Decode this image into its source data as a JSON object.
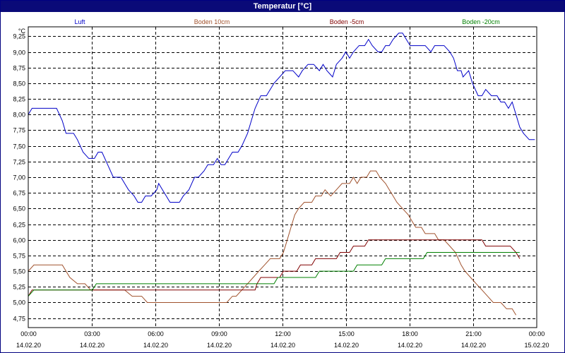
{
  "window": {
    "title": "Temperatur [°C]"
  },
  "chart_data": {
    "type": "line",
    "title": "Temperatur [°C]",
    "ylabel": "°C",
    "xlabel": "",
    "ylim": [
      4.6,
      9.4
    ],
    "y_ticks": [
      "9,25",
      "9,00",
      "8,75",
      "8,50",
      "8,25",
      "8,00",
      "7,75",
      "7,50",
      "7,25",
      "7,00",
      "6,75",
      "6,50",
      "6,25",
      "6,00",
      "5,75",
      "5,50",
      "5,25",
      "5,00",
      "4,75"
    ],
    "x_ticks": [
      {
        "time": "00:00",
        "date": "14.02.20"
      },
      {
        "time": "03:00",
        "date": "14.02.20"
      },
      {
        "time": "06:00",
        "date": "14.02.20"
      },
      {
        "time": "09:00",
        "date": "14.02.20"
      },
      {
        "time": "12:00",
        "date": "14.02.20"
      },
      {
        "time": "15:00",
        "date": "14.02.20"
      },
      {
        "time": "18:00",
        "date": "14.02.20"
      },
      {
        "time": "21:00",
        "date": "14.02.20"
      },
      {
        "time": "00:00",
        "date": "15.02.20"
      }
    ],
    "grid": true,
    "legend_position": "top",
    "series": [
      {
        "name": "Luft",
        "color": "#0000c8",
        "points": [
          [
            0,
            8.0
          ],
          [
            0.2,
            8.1
          ],
          [
            1.5,
            8.1
          ],
          [
            1.8,
            7.9
          ],
          [
            2.0,
            7.7
          ],
          [
            2.4,
            7.7
          ],
          [
            2.6,
            7.6
          ],
          [
            2.9,
            7.4
          ],
          [
            3.2,
            7.3
          ],
          [
            3.5,
            7.3
          ],
          [
            3.7,
            7.4
          ],
          [
            3.9,
            7.4
          ],
          [
            4.2,
            7.2
          ],
          [
            4.5,
            7.0
          ],
          [
            4.9,
            7.0
          ],
          [
            5.1,
            6.9
          ],
          [
            5.3,
            6.8
          ],
          [
            5.6,
            6.7
          ],
          [
            5.8,
            6.6
          ],
          [
            6.0,
            6.6
          ],
          [
            6.2,
            6.7
          ],
          [
            6.5,
            6.7
          ],
          [
            6.8,
            6.8
          ],
          [
            6.9,
            6.9
          ],
          [
            7.1,
            6.8
          ],
          [
            7.3,
            6.7
          ],
          [
            7.5,
            6.6
          ],
          [
            8.0,
            6.6
          ],
          [
            8.2,
            6.7
          ],
          [
            8.5,
            6.8
          ],
          [
            8.8,
            7.0
          ],
          [
            9.0,
            7.0
          ],
          [
            9.3,
            7.1
          ],
          [
            9.5,
            7.2
          ],
          [
            9.8,
            7.2
          ],
          [
            10.0,
            7.3
          ],
          [
            10.2,
            7.2
          ],
          [
            10.4,
            7.2
          ],
          [
            10.6,
            7.3
          ],
          [
            10.8,
            7.4
          ],
          [
            11.1,
            7.4
          ],
          [
            11.3,
            7.5
          ],
          [
            11.6,
            7.7
          ],
          [
            11.8,
            7.9
          ],
          [
            12.0,
            8.1
          ],
          [
            12.3,
            8.3
          ],
          [
            12.6,
            8.3
          ],
          [
            12.8,
            8.4
          ],
          [
            13.0,
            8.5
          ],
          [
            13.3,
            8.6
          ],
          [
            13.6,
            8.7
          ],
          [
            14.0,
            8.7
          ],
          [
            14.3,
            8.6
          ],
          [
            14.5,
            8.7
          ],
          [
            14.8,
            8.8
          ],
          [
            15.1,
            8.8
          ],
          [
            15.4,
            8.7
          ],
          [
            15.6,
            8.8
          ],
          [
            15.8,
            8.7
          ],
          [
            16.1,
            8.6
          ],
          [
            16.3,
            8.8
          ],
          [
            16.6,
            8.9
          ],
          [
            16.8,
            9.0
          ],
          [
            17.0,
            8.9
          ],
          [
            17.2,
            9.0
          ],
          [
            17.5,
            9.1
          ],
          [
            17.8,
            9.1
          ],
          [
            18.0,
            9.2
          ],
          [
            18.2,
            9.1
          ],
          [
            18.5,
            9.0
          ],
          [
            18.7,
            9.0
          ],
          [
            18.9,
            9.1
          ],
          [
            19.1,
            9.1
          ],
          [
            19.3,
            9.2
          ],
          [
            19.6,
            9.3
          ],
          [
            19.8,
            9.3
          ],
          [
            20.0,
            9.2
          ],
          [
            20.2,
            9.1
          ],
          [
            21.0,
            9.1
          ],
          [
            21.3,
            9.0
          ],
          [
            21.5,
            9.1
          ],
          [
            22.0,
            9.1
          ],
          [
            22.3,
            9.0
          ],
          [
            22.5,
            8.9
          ],
          [
            22.7,
            8.7
          ],
          [
            22.9,
            8.7
          ],
          [
            23.0,
            8.6
          ],
          [
            23.3,
            8.7
          ],
          [
            23.5,
            8.5
          ],
          [
            23.8,
            8.3
          ],
          [
            24.0,
            8.3
          ],
          [
            24.2,
            8.4
          ],
          [
            24.5,
            8.3
          ],
          [
            24.8,
            8.3
          ],
          [
            25.0,
            8.2
          ],
          [
            25.2,
            8.2
          ],
          [
            25.4,
            8.1
          ],
          [
            25.6,
            8.2
          ],
          [
            25.8,
            8.0
          ],
          [
            26.0,
            7.8
          ],
          [
            26.2,
            7.7
          ],
          [
            26.5,
            7.6
          ],
          [
            26.8,
            7.6
          ]
        ]
      },
      {
        "name": "Boden 10cm",
        "color": "#a0522d",
        "points": [
          [
            0,
            5.5
          ],
          [
            0.3,
            5.6
          ],
          [
            1.8,
            5.6
          ],
          [
            2.2,
            5.4
          ],
          [
            2.6,
            5.3
          ],
          [
            3.0,
            5.3
          ],
          [
            3.3,
            5.2
          ],
          [
            5.1,
            5.2
          ],
          [
            5.5,
            5.1
          ],
          [
            6.0,
            5.1
          ],
          [
            6.3,
            5.0
          ],
          [
            7.5,
            5.0
          ],
          [
            10.5,
            5.0
          ],
          [
            10.8,
            5.1
          ],
          [
            11.0,
            5.1
          ],
          [
            11.3,
            5.2
          ],
          [
            11.6,
            5.3
          ],
          [
            11.9,
            5.4
          ],
          [
            12.2,
            5.5
          ],
          [
            12.5,
            5.6
          ],
          [
            12.8,
            5.7
          ],
          [
            13.3,
            5.7
          ],
          [
            13.5,
            5.8
          ],
          [
            13.7,
            6.0
          ],
          [
            13.9,
            6.2
          ],
          [
            14.1,
            6.4
          ],
          [
            14.3,
            6.5
          ],
          [
            14.6,
            6.6
          ],
          [
            15.0,
            6.6
          ],
          [
            15.2,
            6.7
          ],
          [
            15.5,
            6.7
          ],
          [
            15.7,
            6.8
          ],
          [
            16.0,
            6.7
          ],
          [
            16.3,
            6.8
          ],
          [
            16.6,
            6.9
          ],
          [
            17.0,
            6.9
          ],
          [
            17.2,
            7.0
          ],
          [
            17.4,
            6.9
          ],
          [
            17.6,
            7.0
          ],
          [
            17.9,
            7.0
          ],
          [
            18.1,
            7.1
          ],
          [
            18.4,
            7.1
          ],
          [
            18.6,
            7.0
          ],
          [
            18.9,
            6.9
          ],
          [
            19.1,
            6.8
          ],
          [
            19.3,
            6.7
          ],
          [
            19.5,
            6.6
          ],
          [
            19.8,
            6.5
          ],
          [
            20.1,
            6.4
          ],
          [
            20.3,
            6.3
          ],
          [
            20.5,
            6.2
          ],
          [
            20.8,
            6.2
          ],
          [
            21.0,
            6.1
          ],
          [
            21.5,
            6.1
          ],
          [
            21.7,
            6.0
          ],
          [
            22.0,
            6.0
          ],
          [
            22.3,
            5.9
          ],
          [
            22.6,
            5.8
          ],
          [
            22.9,
            5.6
          ],
          [
            23.1,
            5.5
          ],
          [
            23.4,
            5.4
          ],
          [
            23.7,
            5.3
          ],
          [
            24.0,
            5.2
          ],
          [
            24.3,
            5.1
          ],
          [
            24.6,
            5.0
          ],
          [
            25.0,
            5.0
          ],
          [
            25.3,
            4.9
          ],
          [
            25.6,
            4.9
          ],
          [
            25.8,
            4.8
          ]
        ]
      },
      {
        "name": "Boden -5cm",
        "color": "#800000",
        "points": [
          [
            0,
            5.1
          ],
          [
            0.2,
            5.2
          ],
          [
            3.0,
            5.2
          ],
          [
            3.4,
            5.2
          ],
          [
            4.5,
            5.2
          ],
          [
            12.0,
            5.2
          ],
          [
            12.1,
            5.3
          ],
          [
            12.3,
            5.4
          ],
          [
            12.6,
            5.4
          ],
          [
            13.3,
            5.4
          ],
          [
            13.5,
            5.5
          ],
          [
            14.2,
            5.5
          ],
          [
            14.4,
            5.6
          ],
          [
            15.0,
            5.6
          ],
          [
            15.2,
            5.7
          ],
          [
            16.3,
            5.7
          ],
          [
            16.5,
            5.8
          ],
          [
            17.0,
            5.8
          ],
          [
            17.2,
            5.9
          ],
          [
            17.8,
            5.9
          ],
          [
            18.0,
            6.0
          ],
          [
            24.0,
            6.0
          ],
          [
            24.2,
            5.9
          ],
          [
            25.5,
            5.9
          ],
          [
            25.8,
            5.8
          ],
          [
            26.0,
            5.7
          ]
        ]
      },
      {
        "name": "Boden -20cm",
        "color": "#008000",
        "points": [
          [
            0,
            5.1
          ],
          [
            0.3,
            5.2
          ],
          [
            3.4,
            5.2
          ],
          [
            3.6,
            5.3
          ],
          [
            13.0,
            5.3
          ],
          [
            13.2,
            5.4
          ],
          [
            15.2,
            5.4
          ],
          [
            15.4,
            5.5
          ],
          [
            17.2,
            5.5
          ],
          [
            17.4,
            5.6
          ],
          [
            18.7,
            5.6
          ],
          [
            18.9,
            5.7
          ],
          [
            20.9,
            5.7
          ],
          [
            21.1,
            5.8
          ],
          [
            26.0,
            5.8
          ]
        ]
      }
    ]
  }
}
